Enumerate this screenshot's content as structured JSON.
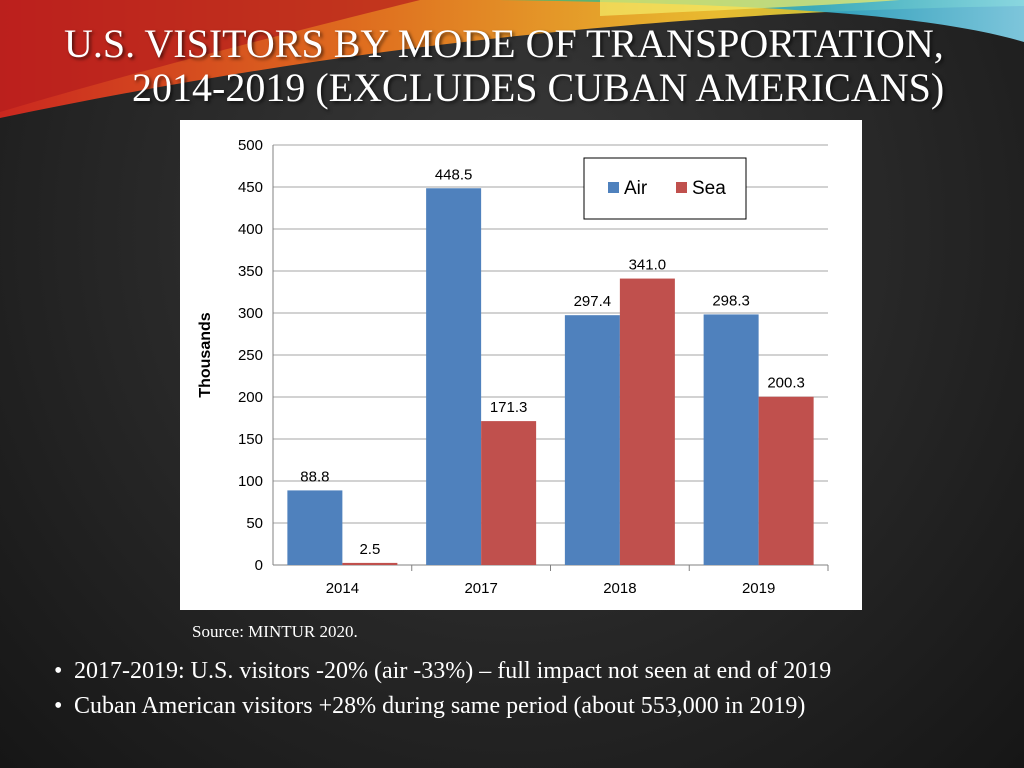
{
  "slide": {
    "title_line1": "U.S. VISITORS BY MODE OF TRANSPORTATION,",
    "title_line2": "2014-2019 (EXCLUDES CUBAN AMERICANS)",
    "source": "Source: MINTUR 2020.",
    "bullets": [
      "2017-2019: U.S. visitors -20% (air -33%) – full impact not seen at end of 2019",
      "Cuban American visitors +28% during same period (about 553,000 in 2019)"
    ],
    "bullet_glyph": "•"
  },
  "chart_data": {
    "type": "bar",
    "title": "",
    "xlabel": "",
    "ylabel": "Thousands",
    "ylim": [
      0,
      500
    ],
    "yticks": [
      0,
      50,
      100,
      150,
      200,
      250,
      300,
      350,
      400,
      450,
      500
    ],
    "categories": [
      "2014",
      "2017",
      "2018",
      "2019"
    ],
    "series": [
      {
        "name": "Air",
        "color": "#4f81bd",
        "values": [
          88.8,
          448.5,
          297.4,
          298.3
        ],
        "labels": [
          "88.8",
          "448.5",
          "297.4",
          "298.3"
        ]
      },
      {
        "name": "Sea",
        "color": "#c0504d",
        "values": [
          2.5,
          171.3,
          341.0,
          200.3
        ],
        "labels": [
          "2.5",
          "171.3",
          "341.0",
          "200.3"
        ]
      }
    ],
    "grid": true,
    "legend": "top-right"
  }
}
